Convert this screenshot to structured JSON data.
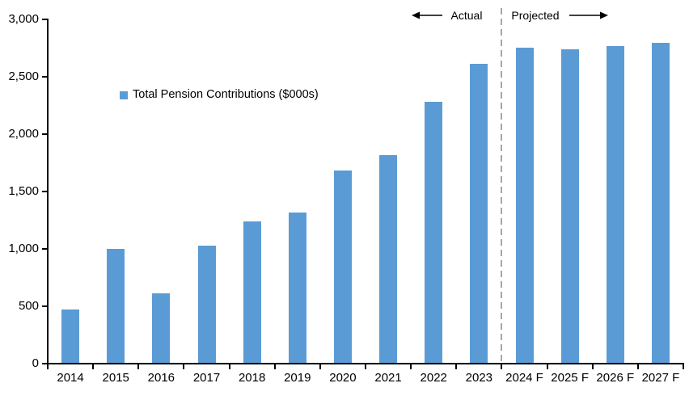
{
  "chart_data": {
    "type": "bar",
    "title": "",
    "legend": "Total Pension Contributions ($000s)",
    "categories": [
      "2014",
      "2015",
      "2016",
      "2017",
      "2018",
      "2019",
      "2020",
      "2021",
      "2022",
      "2023",
      "2024 F",
      "2025 F",
      "2026 F",
      "2027 F"
    ],
    "values": [
      470,
      1000,
      615,
      1025,
      1240,
      1320,
      1685,
      1815,
      2280,
      2610,
      2755,
      2740,
      2770,
      2795
    ],
    "ylim": [
      0,
      3000
    ],
    "ytick_interval": 500,
    "ytick_labels": [
      "0",
      "500",
      "1,000",
      "1,500",
      "2,000",
      "2,500",
      "3,000"
    ],
    "xlabel": "",
    "ylabel": "",
    "grid": false,
    "legend_position": "inside-upper-left",
    "annotations": {
      "actual": "Actual",
      "projected": "Projected"
    },
    "separator_after_index": 10,
    "colors": {
      "bar": "#5b9bd5",
      "separator": "#a6a6a6",
      "axis": "#000000",
      "text": "#000000"
    }
  }
}
